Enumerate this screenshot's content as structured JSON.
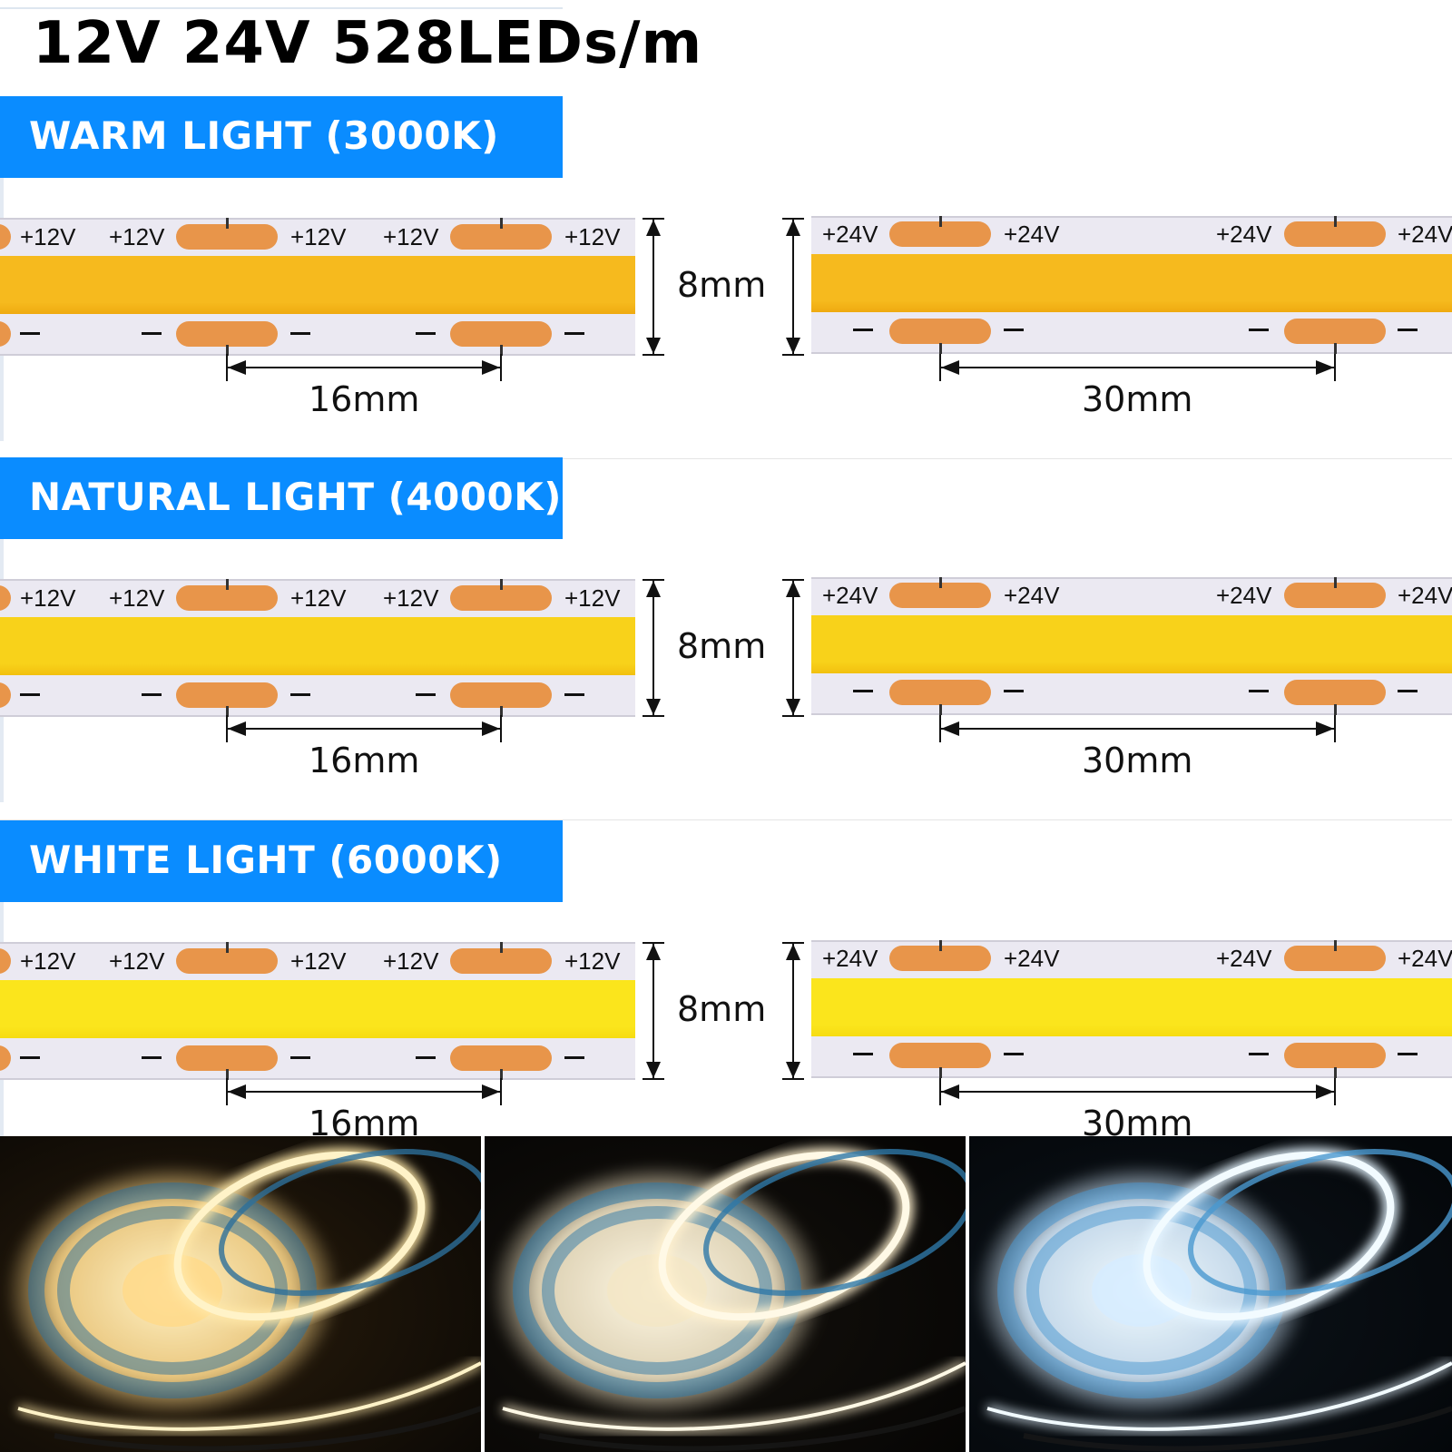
{
  "title": "12V 24V 528LEDs/m",
  "sections": [
    {
      "label": "WARM LIGHT (3000K)",
      "light_color": "#f6ba1e",
      "light_color_dark": "#efaa10"
    },
    {
      "label": "NATURAL LIGHT (4000K)",
      "light_color": "#f8d21a",
      "light_color_dark": "#f2c00f"
    },
    {
      "label": "WHITE LIGHT (6000K)",
      "light_color": "#fbe51c",
      "light_color_dark": "#f6dc12"
    }
  ],
  "strip_12v": {
    "plus_label": "+12V",
    "minus_label": "−",
    "height_label": "8mm",
    "pitch_label": "16mm"
  },
  "strip_24v": {
    "plus_label": "+24V",
    "minus_label": "−",
    "height_label": "8mm",
    "pitch_label": "30mm"
  },
  "colors": {
    "label_bg": "#0a8cff",
    "pad": "#e8954a",
    "strip_base": "#ebe9f2"
  },
  "photos": [
    {
      "name": "warm-light-reel-photo",
      "tone": "warm"
    },
    {
      "name": "natural-light-reel-photo",
      "tone": "natural"
    },
    {
      "name": "white-light-reel-photo",
      "tone": "cool"
    }
  ]
}
